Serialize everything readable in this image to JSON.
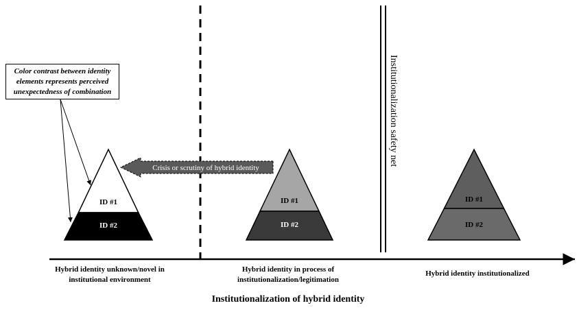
{
  "note": {
    "text": "Color contrast between identity elements represents perceived unexpectedness of combination"
  },
  "arrow": {
    "label": "Crisis or scrutiny of hybrid identity"
  },
  "safety_net": {
    "label": "Institutionalization safety net"
  },
  "triangles": [
    {
      "id1": "ID #1",
      "id2": "ID #2"
    },
    {
      "id1": "ID #1",
      "id2": "ID #2"
    },
    {
      "id1": "ID #1",
      "id2": "ID #2"
    }
  ],
  "stages": [
    {
      "label": "Hybrid identity unknown/novel in institutional environment"
    },
    {
      "label": "Hybrid identity in process of institutionalization/legitimation"
    },
    {
      "label": "Hybrid identity institutionalized"
    }
  ],
  "axis": {
    "title": "Institutionalization of hybrid identity"
  },
  "colors": {
    "t1_top": "#ffffff",
    "t1_bottom": "#000000",
    "t2_top": "#a6a6a6",
    "t2_bottom": "#3a3a3a",
    "t3_top": "#5e5e5e",
    "t3_bottom": "#6a6a6a",
    "arrow_fill": "#5a5a5a"
  }
}
